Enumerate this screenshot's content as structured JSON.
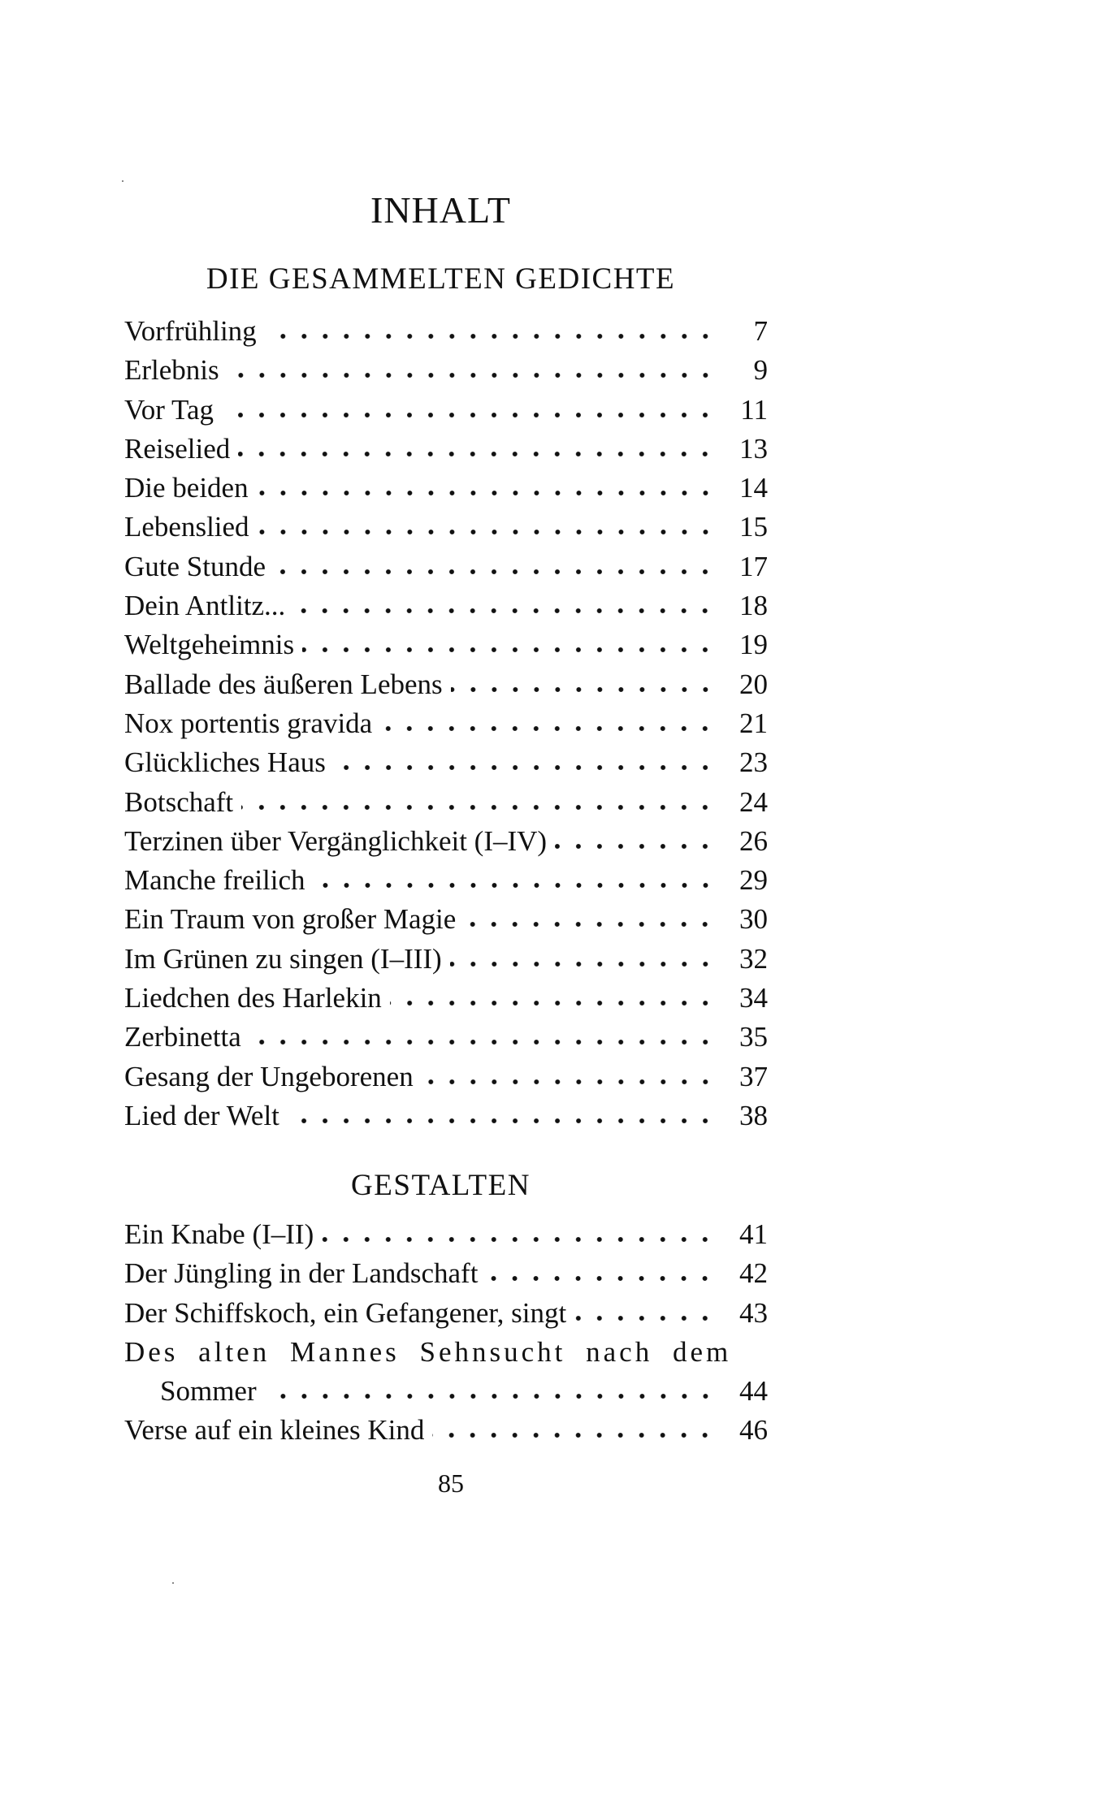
{
  "title": "INHALT",
  "sections": [
    {
      "heading": "DIE GESAMMELTEN GEDICHTE",
      "entries": [
        {
          "title": "Vorfrühling",
          "page": "7"
        },
        {
          "title": "Erlebnis",
          "page": "9"
        },
        {
          "title": "Vor Tag",
          "page": "11"
        },
        {
          "title": "Reiselied",
          "page": "13"
        },
        {
          "title": "Die beiden",
          "page": "14"
        },
        {
          "title": "Lebenslied",
          "page": "15"
        },
        {
          "title": "Gute Stunde",
          "page": "17"
        },
        {
          "title": "Dein Antlitz...",
          "page": "18"
        },
        {
          "title": "Weltgeheimnis",
          "page": "19"
        },
        {
          "title": "Ballade des äußeren Lebens",
          "page": "20"
        },
        {
          "title": "Nox portentis gravida",
          "page": "21"
        },
        {
          "title": "Glückliches Haus",
          "page": "23"
        },
        {
          "title": "Botschaft",
          "page": "24"
        },
        {
          "title": "Terzinen über Vergänglichkeit (I–IV)",
          "page": "26"
        },
        {
          "title": "Manche freilich",
          "page": "29"
        },
        {
          "title": "Ein Traum von großer Magie",
          "page": "30"
        },
        {
          "title": "Im Grünen zu singen (I–III)",
          "page": "32"
        },
        {
          "title": "Liedchen des Harlekin",
          "page": "34"
        },
        {
          "title": "Zerbinetta",
          "page": "35"
        },
        {
          "title": "Gesang der Ungeborenen",
          "page": "37"
        },
        {
          "title": "Lied der Welt",
          "page": "38"
        }
      ]
    },
    {
      "heading": "GESTALTEN",
      "entries": [
        {
          "title": "Ein Knabe (I–II)",
          "page": "41"
        },
        {
          "title": "Der Jüngling in der Landschaft",
          "page": "42"
        },
        {
          "title": "Der Schiffskoch, ein Gefangener, singt",
          "page": "43"
        },
        {
          "title": "Des alten Mannes Sehnsucht nach dem",
          "continuation": "Sommer",
          "page": "44"
        },
        {
          "title": "Verse auf ein kleines Kind",
          "page": "46"
        }
      ]
    }
  ],
  "page_number": "85"
}
